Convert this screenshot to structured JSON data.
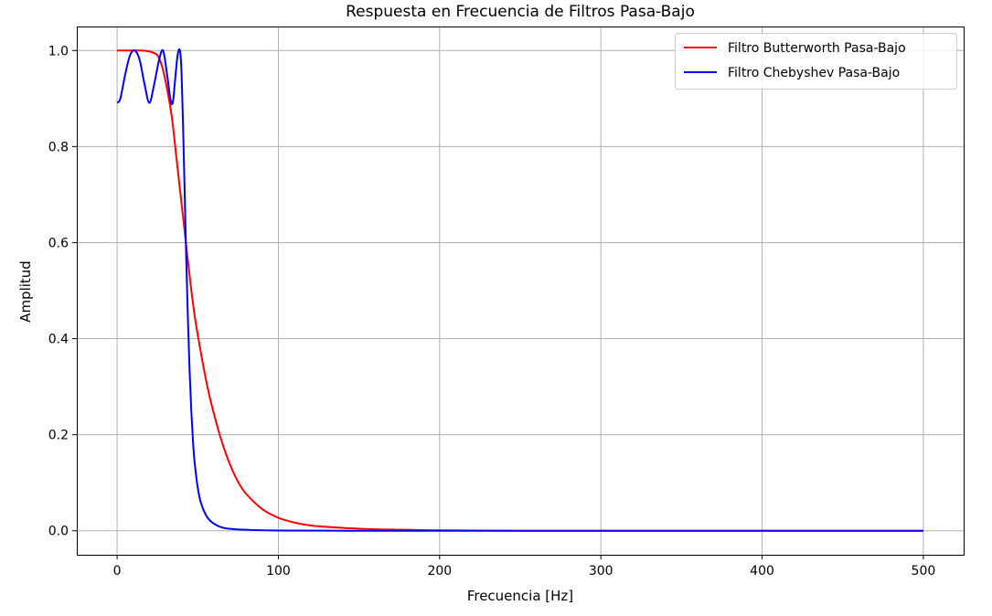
{
  "chart_data": {
    "type": "line",
    "title": "Respuesta en Frecuencia de Filtros Pasa-Bajo",
    "xlabel": "Frecuencia [Hz]",
    "ylabel": "Amplitud",
    "xlim": [
      -25,
      525
    ],
    "ylim": [
      -0.05,
      1.05
    ],
    "x_ticks": [
      0,
      100,
      200,
      300,
      400,
      500
    ],
    "x_tick_labels": [
      "0",
      "100",
      "200",
      "300",
      "400",
      "500"
    ],
    "y_ticks": [
      0.0,
      0.2,
      0.4,
      0.6,
      0.8,
      1.0
    ],
    "y_tick_labels": [
      "0.0",
      "0.2",
      "0.4",
      "0.6",
      "0.8",
      "1.0"
    ],
    "grid": true,
    "legend_position": "top-right",
    "series": [
      {
        "name": "Filtro Butterworth Pasa-Bajo",
        "color": "#ff0000",
        "x": [
          0,
          5,
          10,
          15,
          20,
          25,
          28,
          31,
          34,
          37,
          40,
          42,
          45,
          48,
          52,
          56,
          60,
          65,
          70,
          75,
          80,
          90,
          100,
          110,
          120,
          140,
          160,
          180,
          200,
          250,
          300,
          350,
          400,
          450,
          500
        ],
        "y": [
          1.0,
          1.0,
          1.0,
          1.0,
          0.998,
          0.99,
          0.965,
          0.92,
          0.86,
          0.77,
          0.68,
          0.62,
          0.53,
          0.45,
          0.37,
          0.3,
          0.244,
          0.185,
          0.138,
          0.102,
          0.077,
          0.045,
          0.027,
          0.017,
          0.011,
          0.006,
          0.003,
          0.002,
          0.001,
          0.0,
          0.0,
          0.0,
          0.0,
          0.0,
          0.0
        ]
      },
      {
        "name": "Filtro Chebyshev Pasa-Bajo",
        "color": "#0000ff",
        "x": [
          0,
          2,
          5,
          8,
          11,
          14,
          17,
          20,
          23,
          26,
          28.5,
          31,
          33,
          34.5,
          36,
          37.5,
          39,
          40,
          41,
          42,
          43,
          44,
          45,
          46,
          47,
          48,
          50,
          52,
          55,
          58,
          62,
          66,
          70,
          80,
          100,
          150,
          200,
          300,
          400,
          500
        ],
        "y": [
          0.891,
          0.9,
          0.95,
          0.99,
          1.0,
          0.98,
          0.93,
          0.891,
          0.93,
          0.98,
          1.0,
          0.95,
          0.9,
          0.891,
          0.94,
          0.99,
          1.0,
          0.95,
          0.83,
          0.69,
          0.55,
          0.43,
          0.33,
          0.25,
          0.19,
          0.145,
          0.09,
          0.058,
          0.033,
          0.02,
          0.011,
          0.006,
          0.004,
          0.002,
          0.0005,
          0.0,
          0.0,
          0.0,
          0.0,
          0.0
        ]
      }
    ]
  }
}
